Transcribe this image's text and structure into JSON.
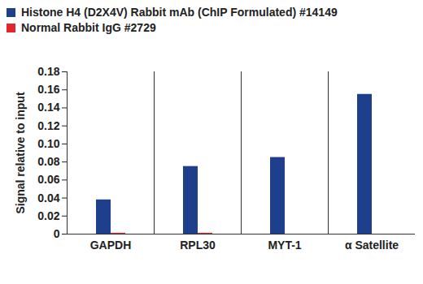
{
  "chart_data": {
    "type": "bar",
    "categories": [
      "GAPDH",
      "RPL30",
      "MYT-1",
      "α Satellite"
    ],
    "series": [
      {
        "name": "Histone H4 (D2X4V) Rabbit mAb (ChIP Formulated) #14149",
        "color": "#1d3f8c",
        "values": [
          0.038,
          0.075,
          0.085,
          0.155
        ]
      },
      {
        "name": "Normal Rabbit IgG #2729",
        "color": "#e3262b",
        "values": [
          0.001,
          0.001,
          0,
          0
        ]
      }
    ],
    "y_label": "Signal relative to input",
    "ylim": [
      0,
      0.18
    ],
    "yticks": [
      0,
      0.02,
      0.04,
      0.06,
      0.08,
      {
        "value": 0.1,
        "label": "0.10"
      },
      0.12,
      0.14,
      0.16,
      0.18
    ],
    "grid": false,
    "legend": "top-left"
  }
}
